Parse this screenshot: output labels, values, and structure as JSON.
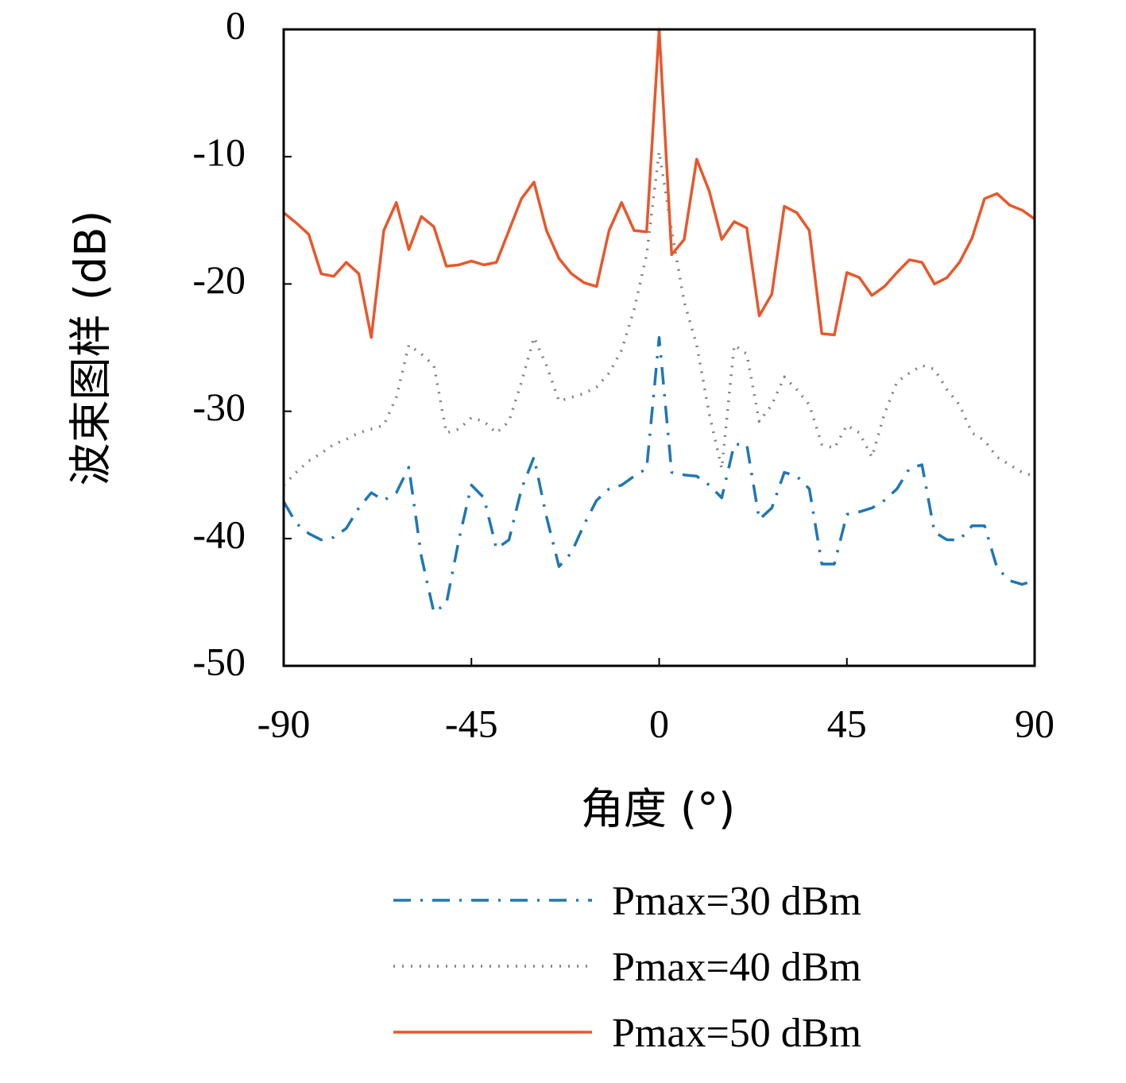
{
  "chart_data": {
    "type": "line",
    "xlabel": "角度 (°)",
    "ylabel": "波束图样 (dB)",
    "xlim": [
      -90,
      90
    ],
    "xticks": [
      -90,
      -45,
      0,
      45,
      90
    ],
    "ylim": [
      -50,
      0
    ],
    "yticks": [
      -50,
      -40,
      -30,
      -20,
      -10,
      0
    ],
    "legend": "below",
    "x": [
      -90,
      -87,
      -84,
      -81,
      -78,
      -75,
      -72,
      -69,
      -66,
      -63,
      -60,
      -57,
      -54,
      -51,
      -48,
      -45,
      -42,
      -39,
      -36,
      -33,
      -30,
      -27,
      -24,
      -21,
      -18,
      -15,
      -12,
      -9,
      -6,
      -3,
      0,
      3,
      6,
      9,
      12,
      15,
      18,
      21,
      24,
      27,
      30,
      33,
      36,
      39,
      42,
      45,
      48,
      51,
      54,
      57,
      60,
      63,
      66,
      69,
      72,
      75,
      78,
      81,
      84,
      87,
      90
    ],
    "series": [
      {
        "name": "Pmax=30 dBm",
        "color": "#1f77b4",
        "dash": "dashdot",
        "values": [
          -37.1,
          -38.8,
          -39.6,
          -40.1,
          -39.9,
          -39.2,
          -37.6,
          -36.4,
          -37.0,
          -36.4,
          -34.4,
          -41.4,
          -45.8,
          -45.1,
          -40.1,
          -35.8,
          -36.8,
          -40.8,
          -40.1,
          -36.1,
          -33.6,
          -38.3,
          -42.2,
          -41.1,
          -38.9,
          -37.0,
          -36.1,
          -35.8,
          -35.1,
          -34.5,
          -24.2,
          -34.8,
          -35.0,
          -35.1,
          -35.8,
          -36.8,
          -32.6,
          -32.6,
          -38.5,
          -37.6,
          -34.8,
          -35.1,
          -36.1,
          -42.0,
          -42.0,
          -38.1,
          -37.9,
          -37.6,
          -37.0,
          -36.1,
          -34.5,
          -34.2,
          -39.5,
          -40.1,
          -40.1,
          -39.0,
          -39.0,
          -42.3,
          -43.3,
          -43.6,
          -43.3
        ]
      },
      {
        "name": "Pmax=40 dBm",
        "color": "#808080",
        "dash": "dotted",
        "values": [
          -35.8,
          -34.8,
          -33.9,
          -33.3,
          -32.6,
          -32.2,
          -31.7,
          -31.4,
          -31.1,
          -28.9,
          -24.8,
          -25.5,
          -26.4,
          -31.7,
          -31.4,
          -30.5,
          -30.8,
          -31.7,
          -30.8,
          -27.7,
          -24.2,
          -26.4,
          -29.2,
          -28.9,
          -28.6,
          -28.1,
          -27.0,
          -25.2,
          -22.0,
          -17.7,
          -9.6,
          -15.8,
          -21.4,
          -24.8,
          -30.2,
          -34.5,
          -24.8,
          -25.5,
          -30.8,
          -29.5,
          -27.3,
          -28.3,
          -29.5,
          -32.6,
          -32.9,
          -31.1,
          -31.7,
          -33.6,
          -30.2,
          -27.7,
          -27.0,
          -26.4,
          -26.7,
          -28.3,
          -29.5,
          -31.7,
          -32.3,
          -33.6,
          -34.2,
          -34.8,
          -35.1
        ]
      },
      {
        "name": "Pmax=50 dBm",
        "color": "#e8572a",
        "dash": "solid",
        "values": [
          -14.4,
          -15.2,
          -16.1,
          -19.2,
          -19.4,
          -18.3,
          -19.2,
          -24.2,
          -15.8,
          -13.6,
          -17.3,
          -14.7,
          -15.5,
          -18.6,
          -18.5,
          -18.2,
          -18.5,
          -18.3,
          -15.8,
          -13.3,
          -12.0,
          -15.8,
          -18.0,
          -19.2,
          -19.9,
          -20.2,
          -15.8,
          -13.6,
          -15.8,
          -15.9,
          0,
          -17.7,
          -16.5,
          -10.2,
          -12.7,
          -16.5,
          -15.1,
          -15.6,
          -22.5,
          -20.8,
          -13.9,
          -14.4,
          -15.8,
          -23.9,
          -24.0,
          -19.1,
          -19.5,
          -20.9,
          -20.2,
          -19.1,
          -18.1,
          -18.3,
          -20.0,
          -19.5,
          -18.3,
          -16.4,
          -13.3,
          -12.9,
          -13.8,
          -14.2,
          -14.9
        ]
      }
    ]
  }
}
